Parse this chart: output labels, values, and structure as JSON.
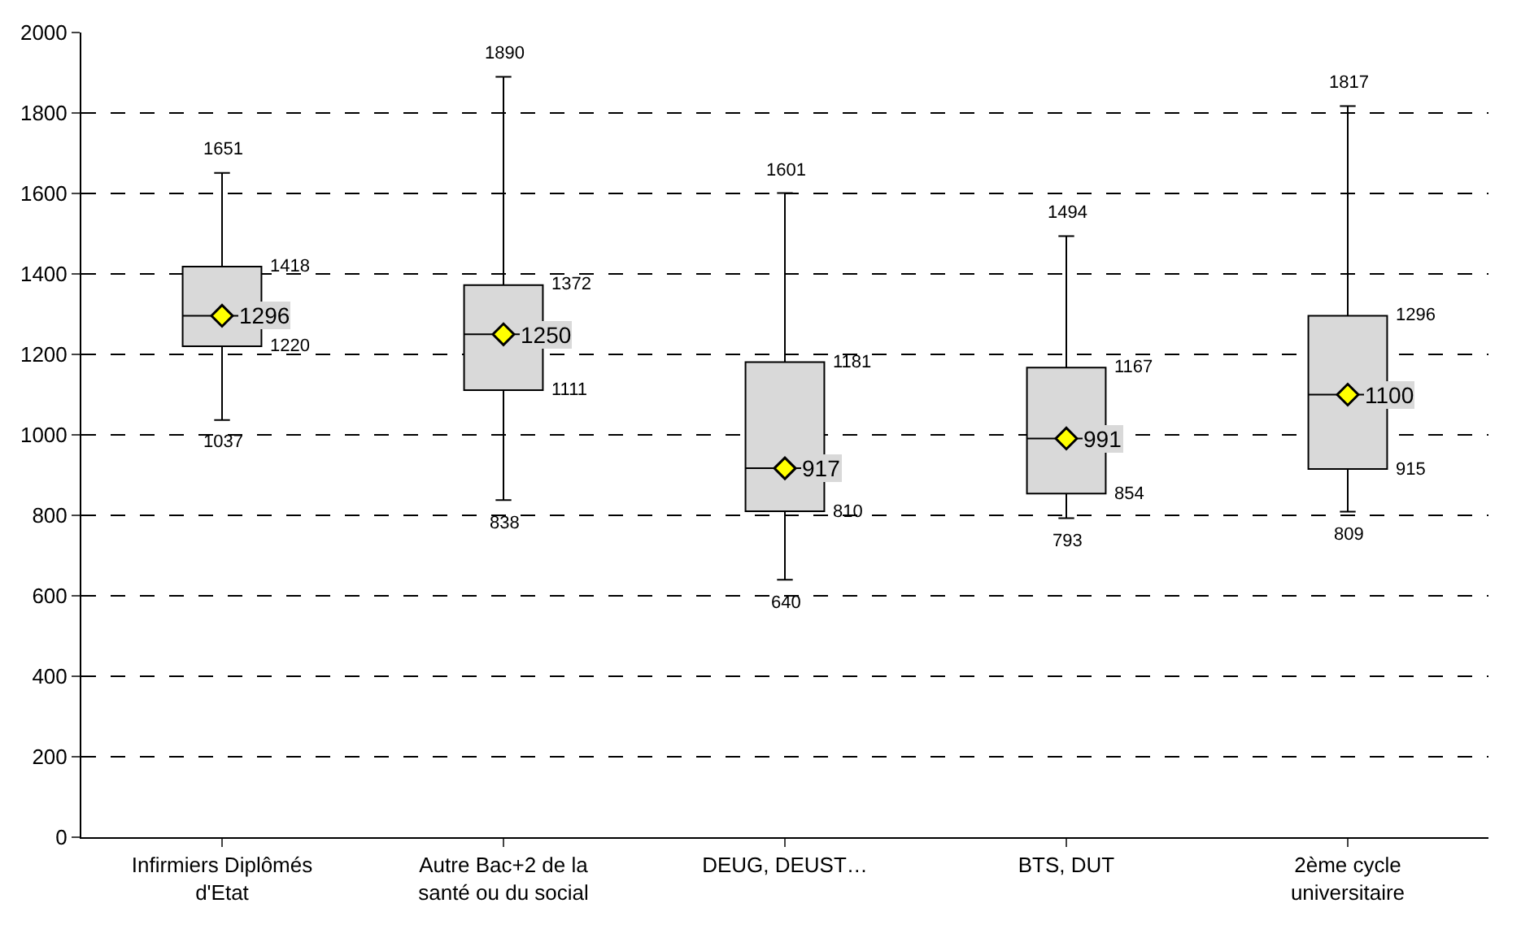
{
  "chart_data": {
    "type": "box",
    "categories": [
      "Infirmiers Diplômés d'Etat",
      "Autre Bac+2 de la santé ou du social",
      "DEUG, DEUST…",
      "BTS, DUT",
      "2ème cycle universitaire"
    ],
    "boxes": [
      {
        "low": 1037,
        "q1": 1220,
        "median": 1296,
        "q3": 1418,
        "high": 1651
      },
      {
        "low": 838,
        "q1": 1111,
        "median": 1250,
        "q3": 1372,
        "high": 1890
      },
      {
        "low": 640,
        "q1": 810,
        "median": 917,
        "q3": 1181,
        "high": 1601
      },
      {
        "low": 793,
        "q1": 854,
        "median": 991,
        "q3": 1167,
        "high": 1494
      },
      {
        "low": 809,
        "q1": 915,
        "median": 1100,
        "q3": 1296,
        "high": 1817
      }
    ],
    "series": [
      {
        "type": "scatter",
        "x": [
          "Infirmiers Diplômés d'Etat",
          "Autre Bac+2 de la santé ou du social",
          "DEUG, DEUST…",
          "BTS, DUT",
          "2ème cycle universitaire"
        ],
        "values": [
          1296,
          1250,
          917,
          991,
          1100
        ],
        "color": "#ffff00"
      }
    ],
    "annotations": [
      {
        "text": "1651",
        "x": "Infirmiers Diplômés d'Etat",
        "y": 1651
      },
      {
        "text": "1418",
        "x": "Infirmiers Diplômés d'Etat",
        "y": 1418
      },
      {
        "text": "1220",
        "x": "Infirmiers Diplômés d'Etat",
        "y": 1220
      },
      {
        "text": "1037",
        "x": "Infirmiers Diplômés d'Etat",
        "y": 1037
      },
      {
        "text": "1890",
        "x": "Autre Bac+2 de la santé ou du social",
        "y": 1890
      },
      {
        "text": "1372",
        "x": "Autre Bac+2 de la santé ou du social",
        "y": 1372
      },
      {
        "text": "1111",
        "x": "Autre Bac+2 de la santé ou du social",
        "y": 1111
      },
      {
        "text": "838",
        "x": "Autre Bac+2 de la santé ou du social",
        "y": 838
      },
      {
        "text": "1601",
        "x": "DEUG, DEUST…",
        "y": 1601
      },
      {
        "text": "1181",
        "x": "DEUG, DEUST…",
        "y": 1181
      },
      {
        "text": "810",
        "x": "DEUG, DEUST…",
        "y": 810
      },
      {
        "text": "640",
        "x": "DEUG, DEUST…",
        "y": 640
      },
      {
        "text": "1494",
        "x": "BTS, DUT",
        "y": 1494
      },
      {
        "text": "1167",
        "x": "BTS, DUT",
        "y": 1167
      },
      {
        "text": "854",
        "x": "BTS, DUT",
        "y": 854
      },
      {
        "text": "793",
        "x": "BTS, DUT",
        "y": 793
      },
      {
        "text": "1817",
        "x": "2ème cycle universitaire",
        "y": 1817
      },
      {
        "text": "1296",
        "x": "2ème cycle universitaire",
        "y": 1296
      },
      {
        "text": "915",
        "x": "2ème cycle universitaire",
        "y": 915
      },
      {
        "text": "809",
        "x": "2ème cycle universitaire",
        "y": 809
      }
    ],
    "color": "#d9d9d9",
    "ylim": [
      0,
      2000
    ],
    "yticks": [
      0,
      200,
      400,
      600,
      800,
      1000,
      1200,
      1400,
      1600,
      1800,
      2000
    ],
    "grid": "y",
    "legend": false,
    "data_labels": true,
    "marker": "diamond"
  }
}
